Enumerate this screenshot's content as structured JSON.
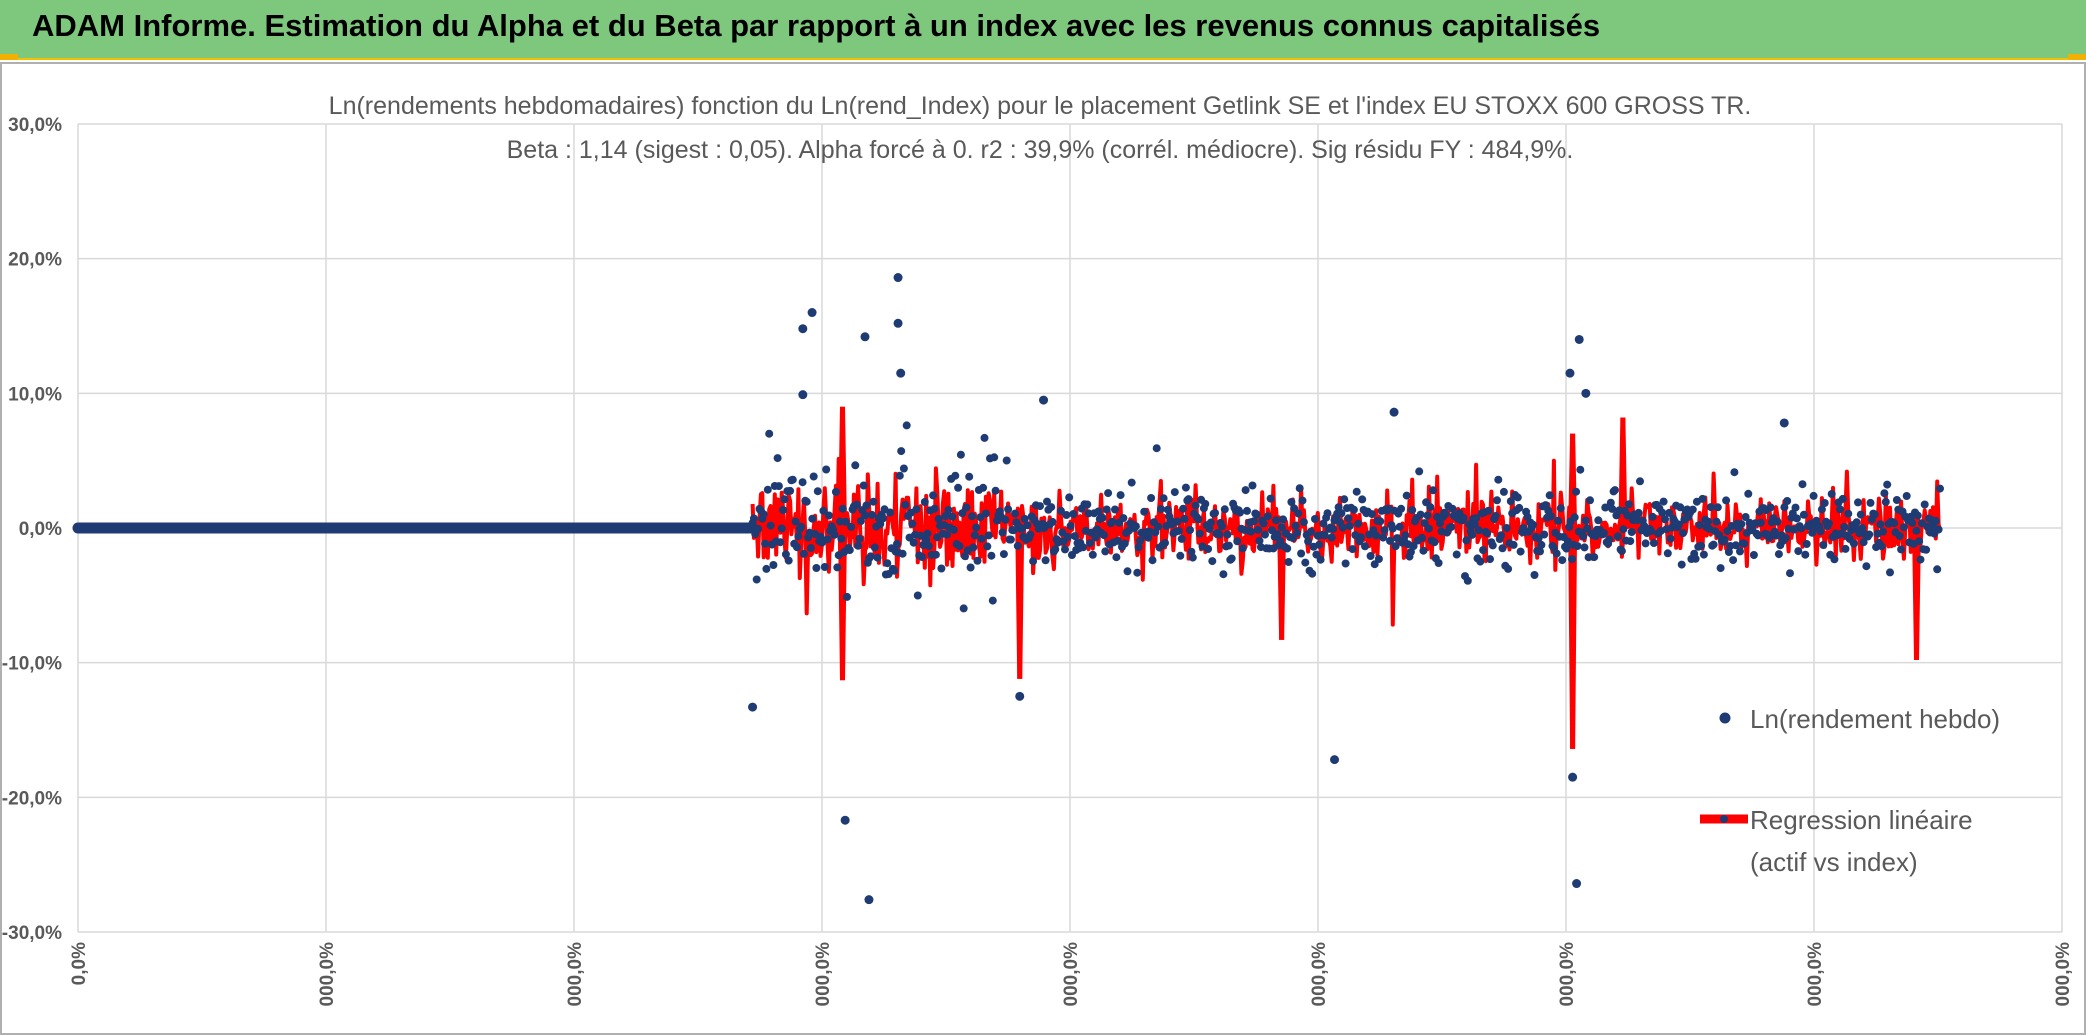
{
  "banner": {
    "title": "ADAM Informe. Estimation du Alpha et du Beta par rapport à un index avec les revenus connus capitalisés"
  },
  "colors": {
    "banner_bg": "#7ec87e",
    "accent_yellow": "#f2b100",
    "dots": "#1f3b73",
    "regression": "#ff0000",
    "grid": "#d9d9d9",
    "text": "#595959"
  },
  "chart_data": {
    "type": "scatter",
    "title": "Ln(rendements hebdomadaires) fonction du Ln(rend_Index) pour le placement Getlink SE et l'index EU STOXX 600 GROSS TR.",
    "subtitle": "Beta : 1,14 (sigest : 0,05). Alpha forcé à 0. r2 : 39,9% (corrél. médiocre). Sig résidu FY : 484,9%.",
    "ylim": [
      -30,
      30
    ],
    "y_ticks": [
      30,
      20,
      10,
      0,
      -10,
      -20,
      -30
    ],
    "y_tick_labels": [
      "30,0%",
      "20,0%",
      "10,0%",
      "0,0%",
      "-10,0%",
      "-20,0%",
      "-30,0%"
    ],
    "xlim": [
      0,
      1500
    ],
    "x_ticks": [
      0,
      187.5,
      375,
      562.5,
      750,
      937.5,
      1125,
      1312.5,
      1500
    ],
    "x_tick_labels": [
      "0,0%",
      "000,0%",
      "000,0%",
      "000,0%",
      "000,0%",
      "000,0%",
      "000,0%",
      "000,0%",
      "000,0%"
    ],
    "zero_run_end": 510,
    "data_start": 510,
    "data_end": 1408,
    "series": [
      {
        "name": "Ln(rendement hebdo)",
        "kind": "points"
      },
      {
        "name": "Regression linéaire (actif vs index)",
        "kind": "line"
      }
    ],
    "legend": [
      {
        "label": "Ln(rendement hebdo)",
        "lines": [
          "Ln(rendement hebdo)"
        ]
      },
      {
        "label": "Regression linéaire (actif vs index)",
        "lines": [
          "Regression linéaire",
          "(actif vs index)"
        ]
      }
    ],
    "notable_points": [
      {
        "x": 620,
        "y": 18.6
      },
      {
        "x": 620,
        "y": 15.2
      },
      {
        "x": 555,
        "y": 16.0
      },
      {
        "x": 548,
        "y": 14.8
      },
      {
        "x": 595,
        "y": 14.2
      },
      {
        "x": 622,
        "y": 11.5
      },
      {
        "x": 1135,
        "y": 14.0
      },
      {
        "x": 730,
        "y": 9.5
      },
      {
        "x": 548,
        "y": 9.9
      },
      {
        "x": 580,
        "y": -21.7
      },
      {
        "x": 598,
        "y": -27.6
      },
      {
        "x": 1133,
        "y": -26.4
      },
      {
        "x": 1130,
        "y": -18.5
      },
      {
        "x": 950,
        "y": -17.2
      },
      {
        "x": 510,
        "y": -13.3
      },
      {
        "x": 712,
        "y": -12.5
      },
      {
        "x": 1128,
        "y": 11.5
      },
      {
        "x": 1140,
        "y": 10.0
      },
      {
        "x": 1290,
        "y": 7.8
      },
      {
        "x": 995,
        "y": 8.6
      }
    ],
    "notable_regression": [
      {
        "x": 578,
        "y": 9.0
      },
      {
        "x": 578,
        "y": -11.3
      },
      {
        "x": 1130,
        "y": 7.0
      },
      {
        "x": 1130,
        "y": -16.4
      },
      {
        "x": 1168,
        "y": 8.2
      },
      {
        "x": 712,
        "y": -11.2
      },
      {
        "x": 1390,
        "y": -9.8
      },
      {
        "x": 910,
        "y": -8.3
      }
    ]
  }
}
